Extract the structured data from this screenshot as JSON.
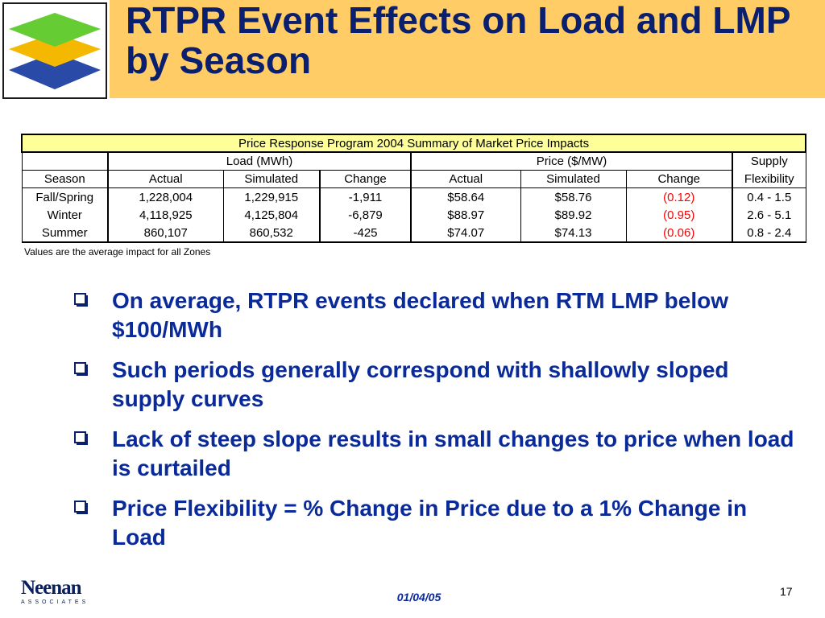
{
  "title": "RTPR Event Effects on Load and LMP by Season",
  "table": {
    "caption": "Price Response Program 2004 Summary of Market Price Impacts",
    "group_load": "Load (MWh)",
    "group_price": "Price ($/MW)",
    "group_supply": "Supply",
    "headers": [
      "Season",
      "Actual",
      "Simulated",
      "Change",
      "Actual",
      "Simulated",
      "Change",
      "Flexibility"
    ],
    "rows": [
      [
        "Fall/Spring",
        "1,228,004",
        "1,229,915",
        "-1,911",
        "$58.64",
        "$58.76",
        "(0.12)",
        "0.4 - 1.5"
      ],
      [
        "Winter",
        "4,118,925",
        "4,125,804",
        "-6,879",
        "$88.97",
        "$89.92",
        "(0.95)",
        "2.6 - 5.1"
      ],
      [
        "Summer",
        "860,107",
        "860,532",
        "-425",
        "$74.07",
        "$74.13",
        "(0.06)",
        "0.8 - 2.4"
      ]
    ],
    "negative_color": "#ff0000",
    "caption_bg": "#ffff99"
  },
  "note": "Values are the average impact for all Zones",
  "bullets": [
    "On average, RTPR events declared when RTM LMP below $100/MWh",
    "Such periods generally correspond with shallowly sloped supply curves",
    "Lack of steep slope results in small changes to price when load is curtailed",
    "Price Flexibility = % Change in Price due to a 1% Change in Load"
  ],
  "footer": {
    "brand": "Neenan",
    "brand_sub": "ASSOCIATES",
    "date": "01/04/05",
    "page": "17"
  },
  "colors": {
    "title": "#0a1f6e",
    "title_band": "#ffcc66",
    "bullet_text": "#0a2a9a",
    "logo_green": "#66cc33",
    "logo_orange": "#f5b800",
    "logo_blue": "#2a4aa8"
  },
  "icons": {
    "bullet": "checkbox-square-icon",
    "logo": "layers-logo-icon"
  }
}
